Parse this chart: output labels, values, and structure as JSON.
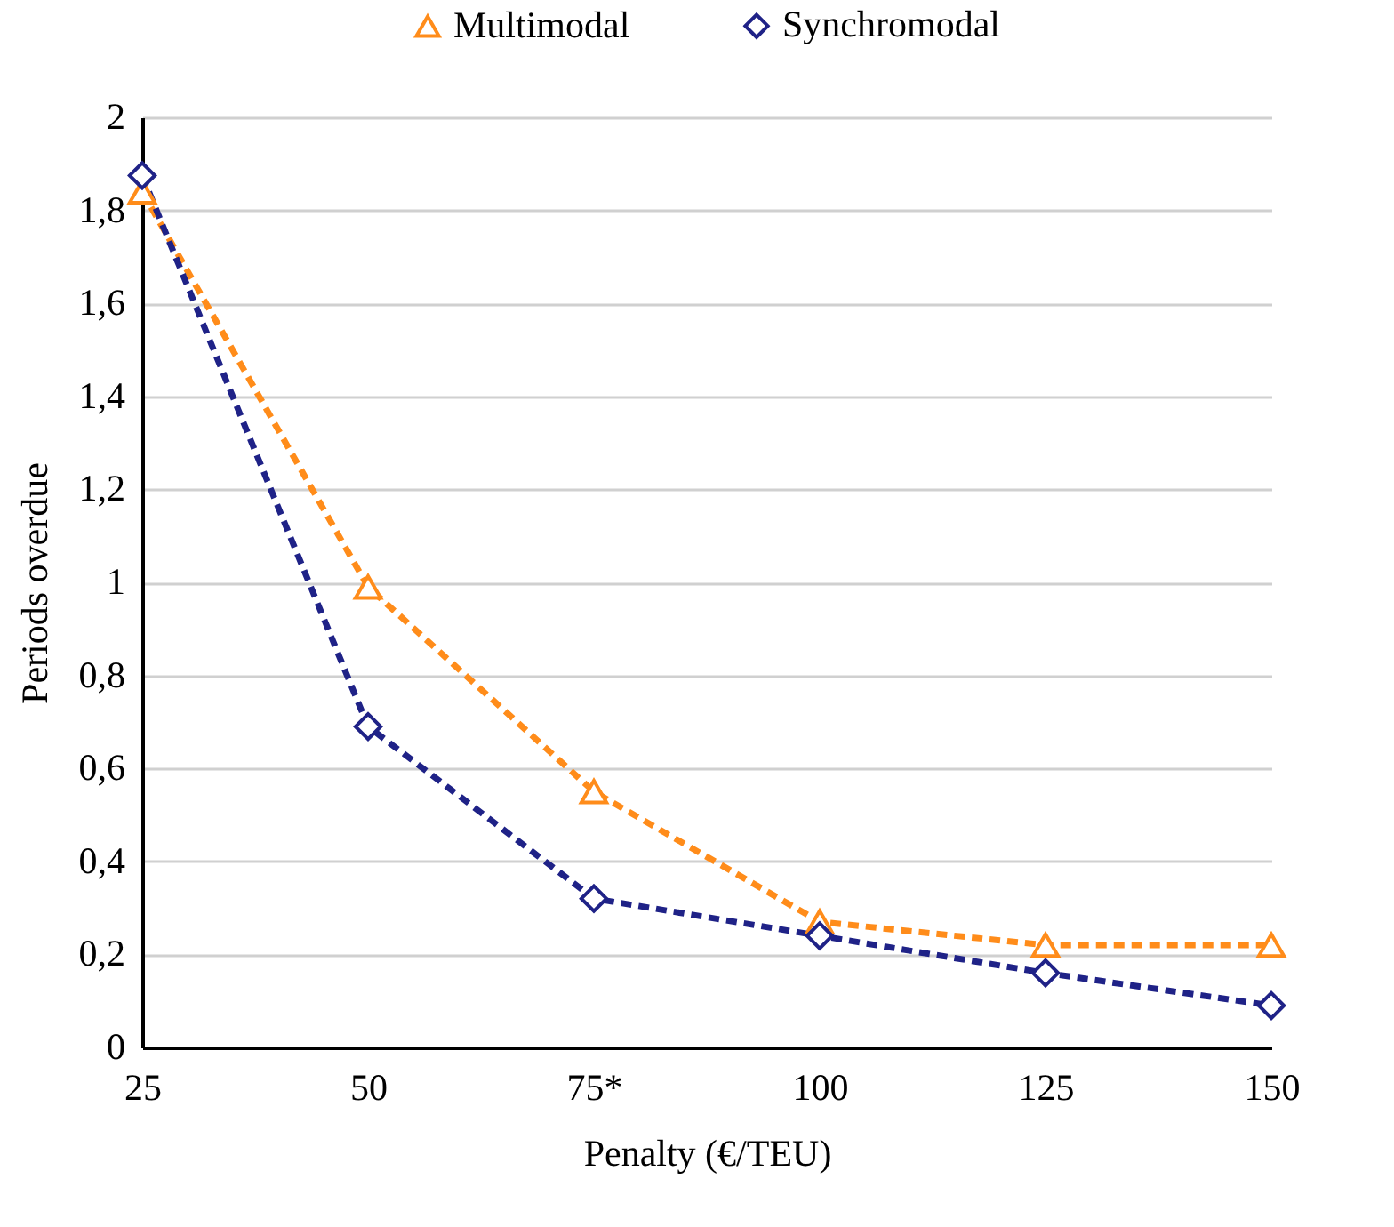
{
  "chart_data": {
    "type": "line",
    "xlabel": "Penalty (€/TEU)",
    "ylabel": "Periods overdue",
    "categories": [
      "25",
      "50",
      "75*",
      "100",
      "125",
      "150"
    ],
    "series": [
      {
        "name": "Multimodal",
        "color": "#ff8c1a",
        "marker": "triangle",
        "values": [
          1.84,
          0.99,
          0.55,
          0.27,
          0.22,
          0.22
        ]
      },
      {
        "name": "Synchromodal",
        "color": "#1f2287",
        "marker": "diamond",
        "values": [
          1.875,
          0.69,
          0.32,
          0.24,
          0.16,
          0.09
        ]
      }
    ],
    "ylim": [
      0,
      2
    ],
    "yticks": [
      0,
      {
        "value": 0.2,
        "label": "0,2"
      },
      {
        "value": 0.4,
        "label": "0,4"
      },
      {
        "value": 0.6,
        "label": "0,6"
      },
      {
        "value": 0.8,
        "label": "0,8"
      },
      1,
      {
        "value": 1.2,
        "label": "1,2"
      },
      {
        "value": 1.4,
        "label": "1,4"
      },
      {
        "value": 1.6,
        "label": "1,6"
      },
      {
        "value": 1.8,
        "label": "1,8"
      },
      2
    ],
    "grid": "y",
    "legend": "top",
    "line_style": "dashed"
  }
}
